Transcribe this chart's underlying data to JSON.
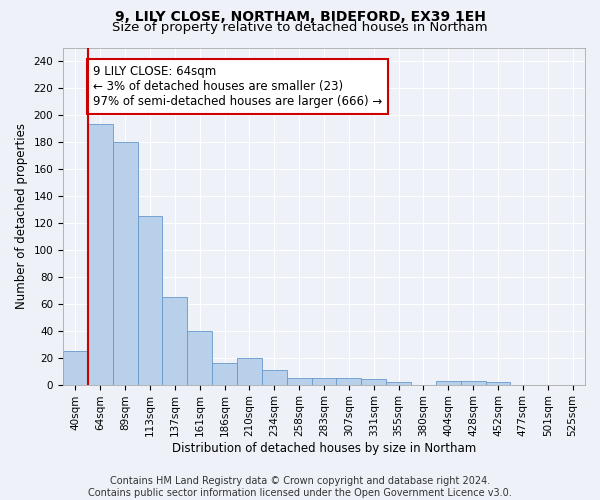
{
  "title_line1": "9, LILY CLOSE, NORTHAM, BIDEFORD, EX39 1EH",
  "title_line2": "Size of property relative to detached houses in Northam",
  "xlabel": "Distribution of detached houses by size in Northam",
  "ylabel": "Number of detached properties",
  "categories": [
    "40sqm",
    "64sqm",
    "89sqm",
    "113sqm",
    "137sqm",
    "161sqm",
    "186sqm",
    "210sqm",
    "234sqm",
    "258sqm",
    "283sqm",
    "307sqm",
    "331sqm",
    "355sqm",
    "380sqm",
    "404sqm",
    "428sqm",
    "452sqm",
    "477sqm",
    "501sqm",
    "525sqm"
  ],
  "values": [
    25,
    193,
    180,
    125,
    65,
    40,
    16,
    20,
    11,
    5,
    5,
    5,
    4,
    2,
    0,
    3,
    3,
    2,
    0,
    0,
    0
  ],
  "highlight_index": 1,
  "bar_color": "#b8d0ea",
  "bar_edge_color": "#6699cc",
  "highlight_line_color": "#cc0000",
  "annotation_text": "9 LILY CLOSE: 64sqm\n← 3% of detached houses are smaller (23)\n97% of semi-detached houses are larger (666) →",
  "annotation_box_color": "#ffffff",
  "annotation_box_edge_color": "#cc0000",
  "ylim": [
    0,
    250
  ],
  "yticks": [
    0,
    20,
    40,
    60,
    80,
    100,
    120,
    140,
    160,
    180,
    200,
    220,
    240
  ],
  "footer_line1": "Contains HM Land Registry data © Crown copyright and database right 2024.",
  "footer_line2": "Contains public sector information licensed under the Open Government Licence v3.0.",
  "background_color": "#eef2f8",
  "plot_bg_color": "#eef2f8",
  "grid_color": "#ffffff",
  "title_fontsize": 10,
  "subtitle_fontsize": 9.5,
  "axis_label_fontsize": 8.5,
  "tick_fontsize": 7.5,
  "annotation_fontsize": 8.5,
  "footer_fontsize": 7
}
